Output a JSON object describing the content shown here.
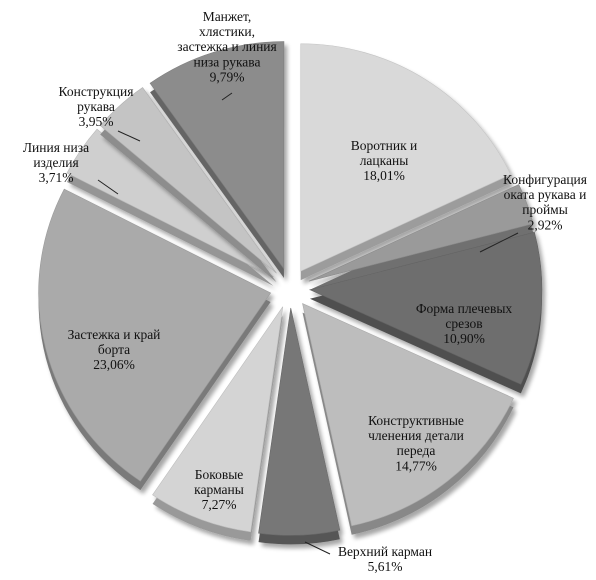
{
  "chart_data": {
    "type": "pie",
    "style": "3d-exploded",
    "legend": "none",
    "slices": [
      {
        "label": "Воротник и лацканы",
        "value": 18.01,
        "display": "18,01%",
        "color": "#d9d9d9"
      },
      {
        "label": "Конфигурация оката рукава и проймы",
        "value": 2.92,
        "display": "2,92%",
        "color": "#9a9a9a"
      },
      {
        "label": "Форма плечевых срезов",
        "value": 10.9,
        "display": "10,90%",
        "color": "#6e6e6e"
      },
      {
        "label": "Конструктивные членения детали переда",
        "value": 14.77,
        "display": "14,77%",
        "color": "#bdbdbd"
      },
      {
        "label": "Верхний карман",
        "value": 5.61,
        "display": "5,61%",
        "color": "#777777"
      },
      {
        "label": "Боковые карманы",
        "value": 7.27,
        "display": "7,27%",
        "color": "#d4d4d4"
      },
      {
        "label": "Застежка и край борта",
        "value": 23.06,
        "display": "23,06%",
        "color": "#aaaaaa"
      },
      {
        "label": "Линия низа изделия",
        "value": 3.71,
        "display": "3,71%",
        "color": "#cfcfcf"
      },
      {
        "label": "Конструкция рукава",
        "value": 3.95,
        "display": "3,95%",
        "color": "#c4c4c4"
      },
      {
        "label": "Манжет, хлястики, застежка и линия низа рукава",
        "value": 9.79,
        "display": "9,79%",
        "color": "#8c8c8c"
      }
    ]
  }
}
